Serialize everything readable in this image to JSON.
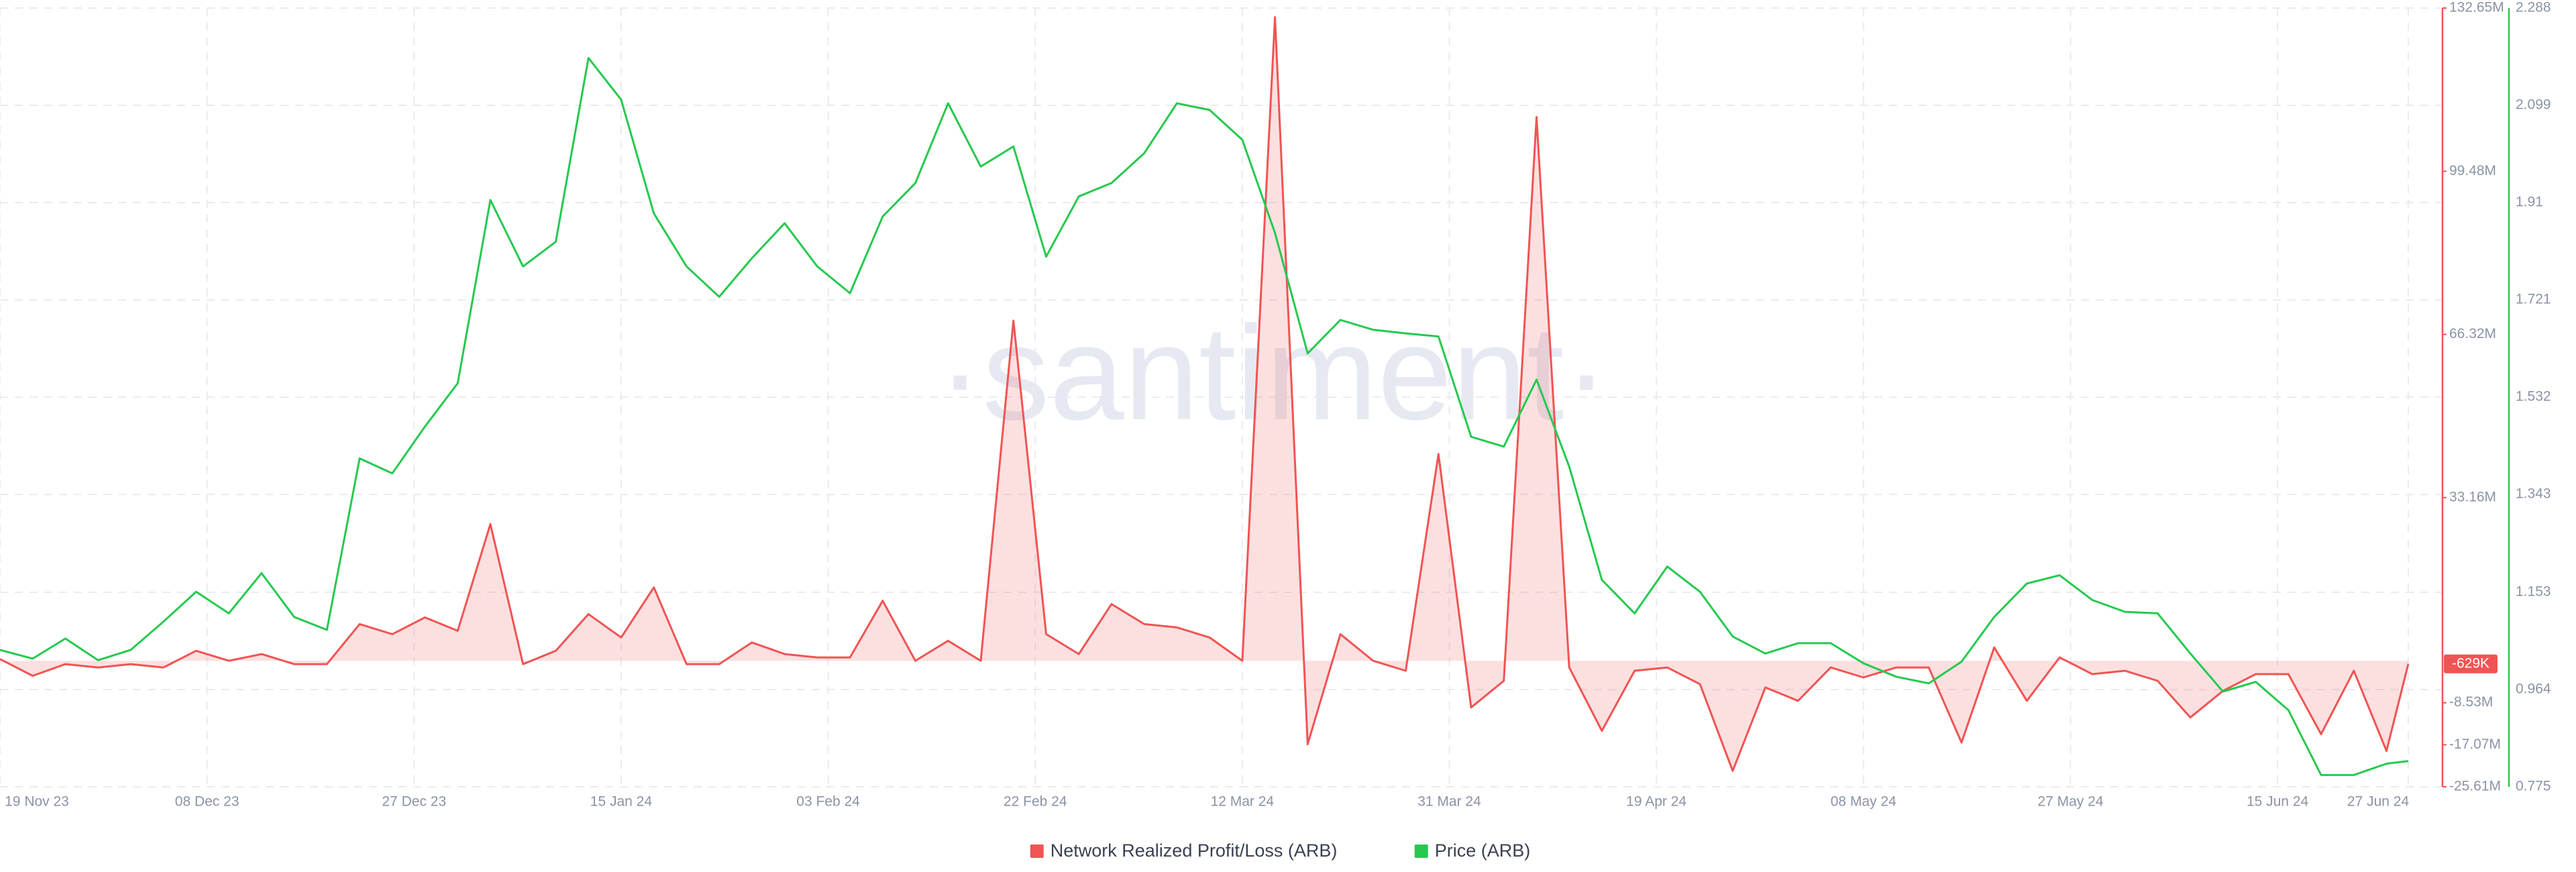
{
  "chart_data": {
    "type": "line",
    "watermark": "·santiment·",
    "x": [
      "2023-11-19",
      "2023-11-22",
      "2023-11-25",
      "2023-11-28",
      "2023-12-01",
      "2023-12-04",
      "2023-12-07",
      "2023-12-10",
      "2023-12-13",
      "2023-12-16",
      "2023-12-19",
      "2023-12-22",
      "2023-12-25",
      "2023-12-28",
      "2023-12-31",
      "2024-01-03",
      "2024-01-06",
      "2024-01-09",
      "2024-01-12",
      "2024-01-15",
      "2024-01-18",
      "2024-01-21",
      "2024-01-24",
      "2024-01-27",
      "2024-01-30",
      "2024-02-02",
      "2024-02-05",
      "2024-02-08",
      "2024-02-11",
      "2024-02-14",
      "2024-02-17",
      "2024-02-20",
      "2024-02-23",
      "2024-02-26",
      "2024-02-29",
      "2024-03-03",
      "2024-03-06",
      "2024-03-09",
      "2024-03-12",
      "2024-03-15",
      "2024-03-18",
      "2024-03-21",
      "2024-03-24",
      "2024-03-27",
      "2024-03-30",
      "2024-04-02",
      "2024-04-05",
      "2024-04-08",
      "2024-04-11",
      "2024-04-14",
      "2024-04-17",
      "2024-04-20",
      "2024-04-23",
      "2024-04-26",
      "2024-04-29",
      "2024-05-02",
      "2024-05-05",
      "2024-05-08",
      "2024-05-11",
      "2024-05-14",
      "2024-05-17",
      "2024-05-20",
      "2024-05-23",
      "2024-05-26",
      "2024-05-29",
      "2024-06-01",
      "2024-06-04",
      "2024-06-07",
      "2024-06-10",
      "2024-06-13",
      "2024-06-16",
      "2024-06-19",
      "2024-06-22",
      "2024-06-25",
      "2024-06-27"
    ],
    "xlim": [
      "2023-11-19",
      "2024-06-27"
    ],
    "xticks": [
      {
        "value": "2023-11-19",
        "label": "19 Nov 23"
      },
      {
        "value": "2023-12-08",
        "label": "08 Dec 23"
      },
      {
        "value": "2023-12-27",
        "label": "27 Dec 23"
      },
      {
        "value": "2024-01-15",
        "label": "15 Jan 24"
      },
      {
        "value": "2024-02-03",
        "label": "03 Feb 24"
      },
      {
        "value": "2024-02-22",
        "label": "22 Feb 24"
      },
      {
        "value": "2024-03-12",
        "label": "12 Mar 24"
      },
      {
        "value": "2024-03-31",
        "label": "31 Mar 24"
      },
      {
        "value": "2024-04-19",
        "label": "19 Apr 24"
      },
      {
        "value": "2024-05-08",
        "label": "08 May 24"
      },
      {
        "value": "2024-05-27",
        "label": "27 May 24"
      },
      {
        "value": "2024-06-15",
        "label": "15 Jun 24"
      },
      {
        "value": "2024-06-27",
        "label": "27 Jun 24"
      }
    ],
    "ylim": [
      -25.61,
      132.65
    ],
    "yticks": [
      {
        "value": -25.61,
        "label": "-25.61M"
      },
      {
        "value": -17.07,
        "label": "-17.07M"
      },
      {
        "value": -8.53,
        "label": "-8.53M"
      },
      {
        "value": 33.16,
        "label": "33.16M"
      },
      {
        "value": 66.32,
        "label": "66.32M"
      },
      {
        "value": 99.48,
        "label": "99.48M"
      },
      {
        "value": 132.65,
        "label": "132.65M"
      }
    ],
    "y2lim": [
      0.775,
      2.288
    ],
    "y2ticks": [
      0.775,
      0.964,
      1.153,
      1.343,
      1.532,
      1.721,
      1.91,
      2.099,
      2.288
    ],
    "grid": true,
    "legend": "bottom",
    "series": [
      {
        "name": "Network Realized Profit/Loss (ARB)",
        "color": "#f05454",
        "axis": "y",
        "fill": true,
        "values": [
          0.34,
          -3.05,
          -0.68,
          -1.36,
          -0.68,
          -1.36,
          2.03,
          0,
          1.36,
          -0.68,
          -0.68,
          7.46,
          5.42,
          8.81,
          6.1,
          27.79,
          -0.68,
          2.03,
          9.49,
          4.74,
          14.91,
          -0.68,
          -0.68,
          3.73,
          1.36,
          0.68,
          0.68,
          12.2,
          0,
          4.07,
          0,
          69.13,
          5.42,
          1.36,
          11.52,
          7.46,
          6.78,
          4.74,
          0,
          130.8,
          -16.95,
          5.42,
          0,
          -2.03,
          42.02,
          -9.49,
          -4.07,
          110.5,
          -1.36,
          -14.23,
          -2.03,
          -1.36,
          -4.74,
          -22.37,
          -5.42,
          -8.13,
          -1.36,
          -3.39,
          -1.36,
          -1.36,
          -16.61,
          2.71,
          -8.13,
          0.68,
          -2.71,
          -2.03,
          -4.07,
          -11.52,
          -6.1,
          -2.71,
          -2.71,
          -14.91,
          -2.03,
          -18.3,
          -0.629
        ],
        "value_labels": [
          null,
          null,
          null,
          null,
          null,
          null,
          null,
          null,
          null,
          null,
          null,
          null,
          null,
          null,
          null,
          null,
          null,
          null,
          null,
          null,
          null,
          null,
          null,
          null,
          null,
          null,
          null,
          null,
          null,
          null,
          null,
          null,
          null,
          null,
          null,
          null,
          null,
          null,
          null,
          null,
          null,
          null,
          null,
          null,
          null,
          null,
          null,
          null,
          null,
          null,
          null,
          null,
          null,
          null,
          null,
          null,
          null,
          null,
          null,
          null,
          null,
          null,
          null,
          null,
          null,
          null,
          null,
          null,
          null,
          null,
          null,
          null,
          null,
          null,
          "-629K"
        ]
      },
      {
        "name": "Price (ARB)",
        "color": "#26c94f",
        "axis": "y2",
        "fill": false,
        "values": [
          1.041,
          1.024,
          1.063,
          1.021,
          1.041,
          1.096,
          1.154,
          1.112,
          1.19,
          1.105,
          1.08,
          1.413,
          1.384,
          1.475,
          1.559,
          1.915,
          1.786,
          1.834,
          2.191,
          2.11,
          1.889,
          1.786,
          1.727,
          1.802,
          1.87,
          1.786,
          1.734,
          1.883,
          1.948,
          2.103,
          1.98,
          2.019,
          1.805,
          1.922,
          1.948,
          2.006,
          2.103,
          2.09,
          2.032,
          1.851,
          1.617,
          1.682,
          1.663,
          1.656,
          1.65,
          1.455,
          1.436,
          1.566,
          1.397,
          1.177,
          1.112,
          1.203,
          1.154,
          1.067,
          1.034,
          1.054,
          1.054,
          1.015,
          0.989,
          0.976,
          1.018,
          1.105,
          1.17,
          1.186,
          1.138,
          1.115,
          1.112,
          1.034,
          0.96,
          0.979,
          0.924,
          0.798,
          0.798,
          0.82,
          0.825
        ]
      }
    ]
  }
}
